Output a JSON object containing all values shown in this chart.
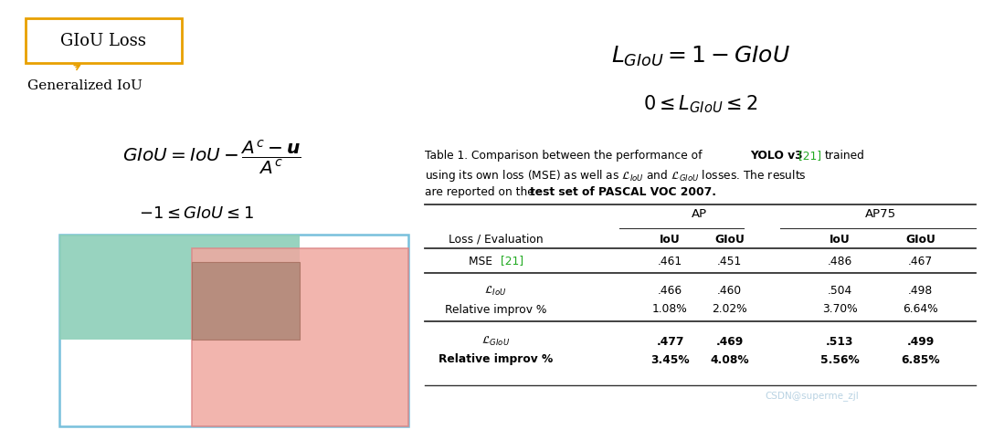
{
  "bg_color": "#ffffff",
  "box_label": "GIoU Loss",
  "box_color": "#E8A000",
  "gen_iou_text": "Generalized IoU",
  "rect_outer_edge": "#78C0DC",
  "rect_green_fill": "#8DCFB8",
  "rect_red_fill": "#F0A8A0",
  "rect_overlap_fill": "#B08878",
  "watermark": "CSDN@superme_zjl",
  "watermark_color": "#A8C8DC",
  "green_ref_color": "#22AA22",
  "table_line_color": "#333333"
}
